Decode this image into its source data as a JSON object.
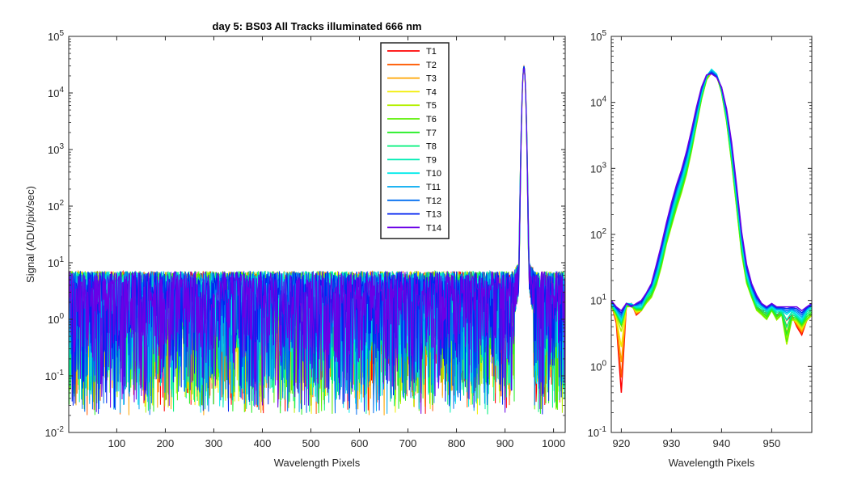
{
  "chart_data": [
    {
      "type": "line",
      "title": "day 5: BS03   All Tracks illuminated   666 nm",
      "xlabel": "Wavelength Pixels",
      "ylabel": "Signal (ADU/pix/sec)",
      "xlim": [
        1,
        1024
      ],
      "ylim": [
        0.01,
        100000
      ],
      "yscale": "log",
      "xticks": [
        100,
        200,
        300,
        400,
        500,
        600,
        700,
        800,
        900,
        1000
      ],
      "yticks": [
        0.01,
        0.1,
        1,
        10,
        100,
        1000,
        10000,
        100000
      ],
      "ytick_labels": [
        {
          "base": "10",
          "exp": "-2"
        },
        {
          "base": "10",
          "exp": "-1"
        },
        {
          "base": "10",
          "exp": "0"
        },
        {
          "base": "10",
          "exp": "1"
        },
        {
          "base": "10",
          "exp": "2"
        },
        {
          "base": "10",
          "exp": "3"
        },
        {
          "base": "10",
          "exp": "4"
        },
        {
          "base": "10",
          "exp": "5"
        }
      ],
      "legend_position": "top-right",
      "background_noise": {
        "typical": [
          0.5,
          6
        ],
        "min": 0.02,
        "max": 9
      },
      "peak": {
        "center": 939,
        "value": 28000
      },
      "series": [
        {
          "name": "T1",
          "color": "#ff0000"
        },
        {
          "name": "T2",
          "color": "#ff5a00"
        },
        {
          "name": "T3",
          "color": "#ffa500"
        },
        {
          "name": "T4",
          "color": "#f2ee00"
        },
        {
          "name": "T5",
          "color": "#b4f000"
        },
        {
          "name": "T6",
          "color": "#5af000"
        },
        {
          "name": "T7",
          "color": "#22ee22"
        },
        {
          "name": "T8",
          "color": "#00f07a"
        },
        {
          "name": "T9",
          "color": "#00ecb4"
        },
        {
          "name": "T10",
          "color": "#00eaea"
        },
        {
          "name": "T11",
          "color": "#00aaf0"
        },
        {
          "name": "T12",
          "color": "#006ef0"
        },
        {
          "name": "T13",
          "color": "#0022f0"
        },
        {
          "name": "T14",
          "color": "#6a00e6"
        }
      ]
    },
    {
      "type": "line",
      "title": "",
      "xlabel": "Wavelength Pixels",
      "ylabel": "",
      "xlim": [
        918,
        958
      ],
      "ylim": [
        0.1,
        100000
      ],
      "yscale": "log",
      "xticks": [
        920,
        930,
        940,
        950
      ],
      "yticks": [
        0.1,
        1,
        10,
        100,
        1000,
        10000,
        100000
      ],
      "ytick_labels": [
        {
          "base": "10",
          "exp": "-1"
        },
        {
          "base": "10",
          "exp": "0"
        },
        {
          "base": "10",
          "exp": "1"
        },
        {
          "base": "10",
          "exp": "2"
        },
        {
          "base": "10",
          "exp": "3"
        },
        {
          "base": "10",
          "exp": "4"
        },
        {
          "base": "10",
          "exp": "5"
        }
      ],
      "x": [
        918,
        919,
        920,
        921,
        922,
        923,
        924,
        925,
        926,
        927,
        928,
        929,
        930,
        931,
        932,
        933,
        934,
        935,
        936,
        937,
        938,
        939,
        940,
        941,
        942,
        943,
        944,
        945,
        946,
        947,
        948,
        949,
        950,
        951,
        952,
        953,
        954,
        955,
        956,
        957,
        958
      ],
      "series_values": {
        "T1": [
          9,
          4.5,
          0.4,
          8,
          9,
          6,
          7,
          10,
          12,
          20,
          40,
          90,
          160,
          300,
          500,
          900,
          2000,
          5000,
          12000,
          22000,
          28000,
          25000,
          15000,
          6000,
          1500,
          300,
          60,
          20,
          12,
          8,
          7,
          7,
          8,
          6,
          7,
          5,
          6,
          4,
          3,
          5,
          6
        ],
        "T5": [
          8,
          6,
          4,
          8,
          8,
          7,
          7,
          9,
          11,
          17,
          32,
          70,
          130,
          240,
          420,
          800,
          1800,
          4500,
          11000,
          22000,
          30000,
          26000,
          14000,
          5000,
          1200,
          250,
          50,
          18,
          11,
          7,
          6,
          5,
          7,
          5,
          6,
          2,
          5,
          5,
          4,
          5,
          6
        ],
        "T9": [
          9,
          7,
          5,
          9,
          9,
          8,
          8,
          12,
          15,
          24,
          48,
          100,
          200,
          380,
          650,
          1200,
          2600,
          6000,
          14000,
          25000,
          32000,
          27000,
          16000,
          6500,
          1800,
          380,
          80,
          25,
          14,
          9,
          8,
          7,
          8,
          7,
          7,
          6,
          7,
          6,
          5,
          7,
          8
        ],
        "T13": [
          10,
          8,
          7,
          9,
          8,
          9,
          10,
          13,
          18,
          35,
          70,
          150,
          300,
          560,
          950,
          1800,
          3800,
          8500,
          17000,
          26000,
          27000,
          24000,
          17000,
          8000,
          2500,
          550,
          110,
          35,
          18,
          12,
          9,
          8,
          9,
          8,
          8,
          8,
          8,
          8,
          7,
          8,
          9
        ]
      }
    }
  ]
}
